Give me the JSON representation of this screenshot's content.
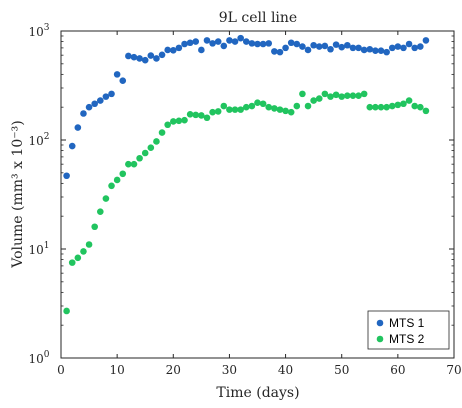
{
  "chart_data": {
    "type": "scatter",
    "title": "9L cell line",
    "xlabel": "Time (days)",
    "ylabel": "Volume (mm³ x 10⁻³)",
    "xlim": [
      0,
      70
    ],
    "ylim": [
      1,
      1000
    ],
    "yscale": "log",
    "x_ticks": [
      "0",
      "10",
      "20",
      "30",
      "40",
      "50",
      "60",
      "70"
    ],
    "y_ticks": [
      {
        "base": "10",
        "exp": "0"
      },
      {
        "base": "10",
        "exp": "1"
      },
      {
        "base": "10",
        "exp": "2"
      },
      {
        "base": "10",
        "exp": "3"
      }
    ],
    "grid": false,
    "legend_position": "bottom-right",
    "series": [
      {
        "name": "MTS 1",
        "color": "#2166c0",
        "x": [
          1,
          2,
          3,
          4,
          5,
          6,
          7,
          8,
          9,
          10,
          11,
          12,
          13,
          14,
          15,
          16,
          17,
          18,
          19,
          20,
          21,
          22,
          23,
          24,
          25,
          26,
          27,
          28,
          29,
          30,
          31,
          32,
          33,
          34,
          35,
          36,
          37,
          38,
          39,
          40,
          41,
          42,
          43,
          44,
          45,
          46,
          47,
          48,
          49,
          50,
          51,
          52,
          53,
          54,
          55,
          56,
          57,
          58,
          59,
          60,
          61,
          62,
          63,
          64,
          65
        ],
        "y": [
          47,
          88,
          130,
          175,
          200,
          215,
          230,
          250,
          265,
          400,
          350,
          590,
          575,
          560,
          540,
          595,
          560,
          605,
          670,
          665,
          700,
          760,
          780,
          800,
          670,
          820,
          770,
          800,
          730,
          820,
          800,
          860,
          800,
          770,
          760,
          760,
          770,
          650,
          640,
          700,
          780,
          760,
          720,
          670,
          740,
          720,
          730,
          680,
          750,
          710,
          740,
          700,
          700,
          670,
          680,
          660,
          660,
          640,
          700,
          720,
          700,
          760,
          700,
          720,
          820
        ]
      },
      {
        "name": "MTS 2",
        "color": "#21c45f",
        "x": [
          1,
          2,
          3,
          4,
          5,
          6,
          7,
          8,
          9,
          10,
          11,
          12,
          13,
          14,
          15,
          16,
          17,
          18,
          19,
          20,
          21,
          22,
          23,
          24,
          25,
          26,
          27,
          28,
          29,
          30,
          31,
          32,
          33,
          34,
          35,
          36,
          37,
          38,
          39,
          40,
          41,
          42,
          43,
          44,
          45,
          46,
          47,
          48,
          49,
          50,
          51,
          52,
          53,
          54,
          55,
          56,
          57,
          58,
          59,
          60,
          61,
          62,
          63,
          64,
          65
        ],
        "y": [
          2.7,
          7.5,
          8.3,
          9.5,
          11,
          16,
          22,
          29,
          38,
          43,
          49,
          60,
          60,
          68,
          76,
          85,
          97,
          117,
          138,
          148,
          150,
          152,
          172,
          170,
          168,
          160,
          180,
          183,
          205,
          190,
          190,
          190,
          200,
          205,
          220,
          215,
          200,
          195,
          190,
          185,
          180,
          205,
          265,
          205,
          230,
          240,
          265,
          250,
          260,
          250,
          255,
          255,
          255,
          265,
          200,
          200,
          200,
          200,
          205,
          210,
          215,
          230,
          205,
          200,
          185
        ]
      }
    ]
  }
}
